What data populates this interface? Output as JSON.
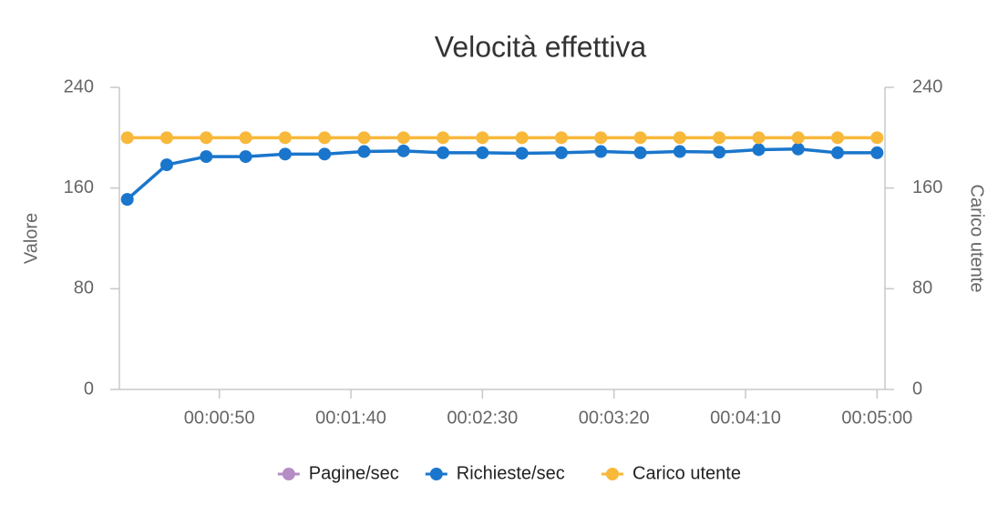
{
  "chart_data": {
    "type": "line",
    "title": "Velocità effettiva",
    "ylabel": "Valore",
    "y2label": "Carico utente",
    "x": [
      15,
      30,
      45,
      60,
      75,
      90,
      105,
      120,
      135,
      150,
      165,
      180,
      195,
      210,
      225,
      240,
      255,
      270,
      285,
      300
    ],
    "xlim": [
      12,
      303
    ],
    "xticks": [
      {
        "value": 50,
        "label": "00:00:50"
      },
      {
        "value": 100,
        "label": "00:01:40"
      },
      {
        "value": 150,
        "label": "00:02:30"
      },
      {
        "value": 200,
        "label": "00:03:20"
      },
      {
        "value": 250,
        "label": "00:04:10"
      },
      {
        "value": 300,
        "label": "00:05:00"
      }
    ],
    "ylim": [
      0,
      240
    ],
    "yticks": [
      0,
      80,
      160,
      240
    ],
    "y2lim": [
      0,
      240
    ],
    "y2ticks": [
      0,
      80,
      160,
      240
    ],
    "grid": false,
    "legend": "bottom",
    "series": [
      {
        "name": "Pagine/sec",
        "color": "#b48cc6",
        "values": [
          null,
          null,
          null,
          null,
          null,
          null,
          null,
          null,
          null,
          null,
          null,
          null,
          null,
          null,
          null,
          null,
          null,
          null,
          null,
          null
        ]
      },
      {
        "name": "Richieste/sec",
        "color": "#1a76cc",
        "values": [
          151,
          178.5,
          185,
          185,
          187,
          187,
          189,
          189.5,
          188,
          188,
          187.6,
          188,
          189,
          188,
          189,
          188.5,
          190.5,
          191,
          188,
          188
        ]
      },
      {
        "name": "Carico utente",
        "color": "#f8b83a",
        "axis": "y2",
        "values": [
          200,
          200,
          200,
          200,
          200,
          200,
          200,
          200,
          200,
          200,
          200,
          200,
          200,
          200,
          200,
          200,
          200,
          200,
          200,
          200
        ]
      }
    ]
  }
}
